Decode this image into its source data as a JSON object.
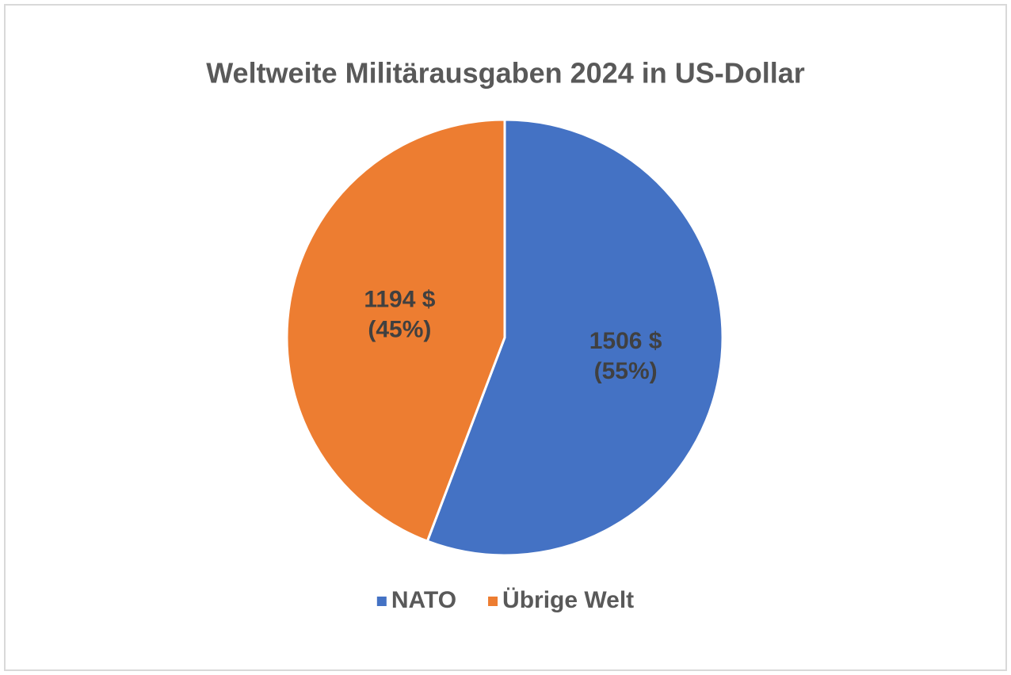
{
  "chart_data": {
    "type": "pie",
    "title": "Weltweite Militärausgaben 2024 in US-Dollar",
    "categories": [
      "NATO",
      "Übrige Welt"
    ],
    "values": [
      1506,
      1194
    ],
    "value_labels": [
      "1506 $",
      "1194 $"
    ],
    "percent_labels": [
      "(55%)",
      "(45%)"
    ],
    "colors": [
      "#4472c4",
      "#ed7d31"
    ],
    "legend": "bottom"
  }
}
